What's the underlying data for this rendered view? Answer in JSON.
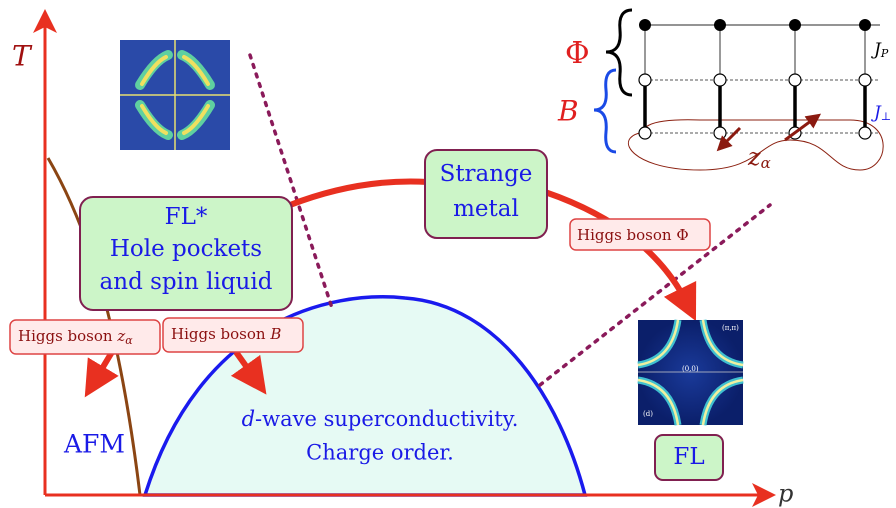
{
  "axes": {
    "y_label": "T",
    "x_label": "p"
  },
  "lattice": {
    "phi": "Φ",
    "b": "B",
    "j_top": "J",
    "j_top_sub": "P",
    "j_bottom": "J",
    "j_bottom_sub": "⊥",
    "z": "z",
    "z_sub": "α"
  },
  "fl_star": {
    "lines": [
      "FL*",
      "Hole pockets",
      "and spin liquid"
    ]
  },
  "strange_metal": {
    "lines": [
      "Strange",
      "metal"
    ]
  },
  "higgs_phi": {
    "text": "Higgs boson",
    "symbol": "Φ"
  },
  "higgs_z": {
    "text": "Higgs boson",
    "symbol": "z",
    "sub": "α"
  },
  "higgs_b": {
    "text": "Higgs boson",
    "symbol": "B"
  },
  "afm": "AFM",
  "superconductivity": {
    "d": "d",
    "line1": "-wave superconductivity.",
    "line2": "Charge order."
  },
  "fl": "FL",
  "fermi_surface": {
    "corner": "(π,π)",
    "center": "(0,0)",
    "panel": "(d)"
  }
}
